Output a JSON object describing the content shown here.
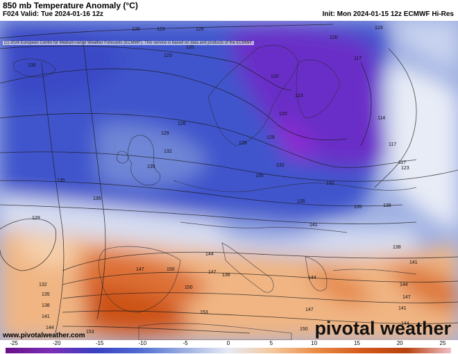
{
  "header": {
    "title": "850 mb Temperature Anomaly (°C)",
    "valid": "F024 Valid: Tue 2024-01-16 12z",
    "init": "Init: Mon 2024-01-15 12z ECMWF Hi-Res"
  },
  "copyright": "(c) 2024 European Centre for Medium-range Weather Forecasts (ECMWF). This service is based on data and products of the ECMWF.",
  "website": "www.pivotalweather.com",
  "logo": "pivotal weather",
  "colorbar": {
    "ticks": [
      "-25",
      "-20",
      "-15",
      "-10",
      "-5",
      "0",
      "5",
      "10",
      "15",
      "20",
      "25"
    ],
    "colors": [
      "#6a0f8a",
      "#7b2fb5",
      "#3a3fc2",
      "#4f6bd0",
      "#9aaee0",
      "#e6eaf5",
      "#f6c79c",
      "#e88a45",
      "#d4591c",
      "#b8420f",
      "#f0c0c8"
    ]
  },
  "contour_labels": [
    "123",
    "126",
    "120",
    "135",
    "126",
    "123",
    "117",
    "120",
    "114",
    "123",
    "120",
    "120",
    "117",
    "123",
    "129",
    "129",
    "132",
    "135",
    "126",
    "132",
    "135",
    "129",
    "135",
    "132",
    "135",
    "138",
    "135",
    "141",
    "144",
    "135",
    "138",
    "141",
    "144",
    "147",
    "150",
    "153",
    "132",
    "135",
    "138",
    "141",
    "144",
    "147",
    "150",
    "147",
    "144",
    "138",
    "141",
    "144",
    "147",
    "150",
    "153",
    "129",
    "123",
    "117"
  ]
}
